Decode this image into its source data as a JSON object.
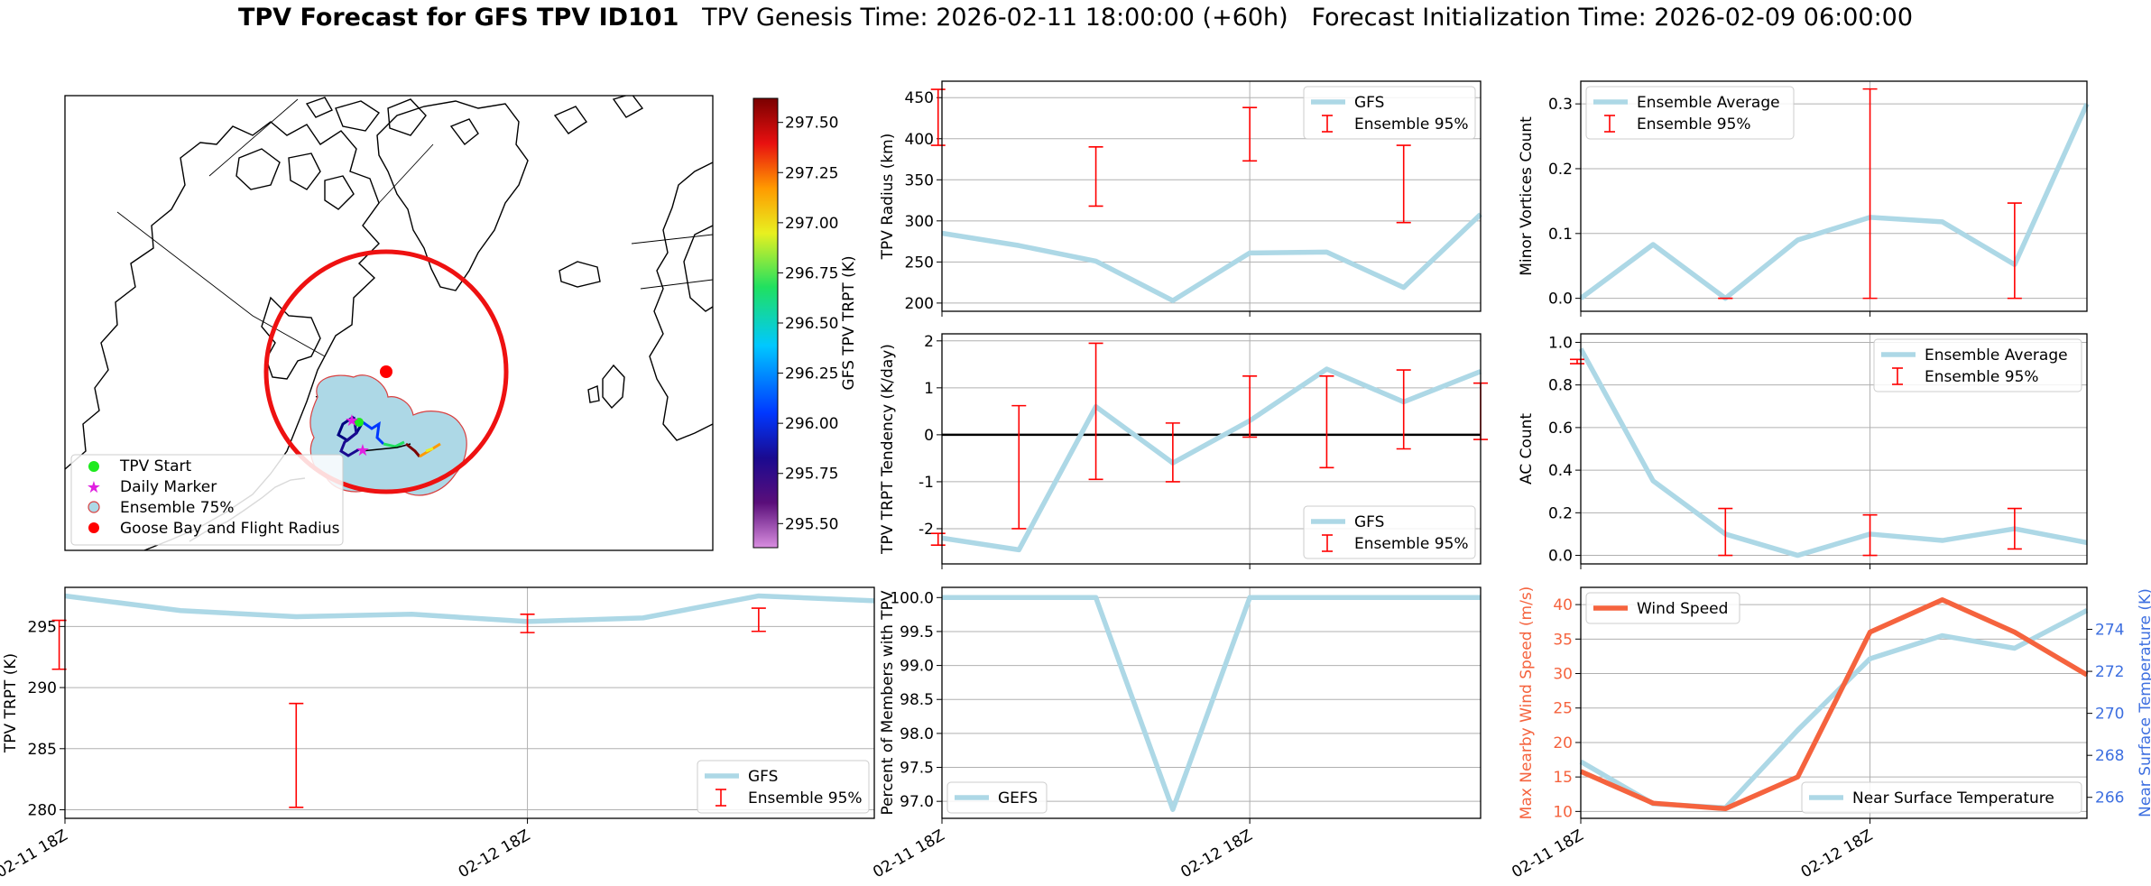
{
  "title": {
    "bold": "TPV Forecast for GFS TPV ID101",
    "genesis": "TPV Genesis Time: 2026-02-11 18:00:00 (+60h)",
    "init": "Forecast Initialization Time: 2026-02-09 06:00:00"
  },
  "colors": {
    "gfs": "#add8e6",
    "errbar": "#ff0000",
    "wind": "#f5633e",
    "temp_axis": "#3d6fe0",
    "zero_line": "#000000"
  },
  "map": {
    "legend": [
      "TPV Start",
      "Daily Marker",
      "Ensemble 75%",
      "Goose Bay and Flight Radius"
    ],
    "colorbar": {
      "label": "GFS TPV TRPT (K)",
      "ticks": [
        "297.50",
        "297.25",
        "297.00",
        "296.75",
        "296.50",
        "296.25",
        "296.00",
        "295.75",
        "295.50"
      ],
      "range": [
        295.38,
        297.62
      ]
    }
  },
  "x_ticks": [
    "02-11 18Z",
    "02-12 18Z"
  ],
  "chart_data": [
    {
      "id": "radius",
      "type": "line",
      "ylabel": "TPV Radius (km)",
      "ylim": [
        190,
        470
      ],
      "yticks": [
        200,
        250,
        300,
        350,
        400,
        450
      ],
      "xlim": [
        0,
        7
      ],
      "x": [
        0,
        1,
        2,
        3,
        4,
        5,
        6,
        7
      ],
      "values": [
        285,
        270,
        251,
        203,
        261,
        262,
        219,
        308
      ],
      "errbars": [
        [
          -0.05,
          392,
          460
        ],
        [
          2,
          318,
          390
        ],
        [
          4,
          373,
          438
        ],
        [
          6,
          298,
          392
        ]
      ],
      "legend": [
        "GFS",
        "Ensemble 95%"
      ],
      "legend_pos": "top-right"
    },
    {
      "id": "minor",
      "type": "line",
      "ylabel": "Minor Vortices Count",
      "ylim": [
        -0.02,
        0.335
      ],
      "yticks": [
        0.0,
        0.1,
        0.2,
        0.3
      ],
      "xlim": [
        0,
        7
      ],
      "x": [
        0,
        1,
        2,
        3,
        4,
        5,
        6,
        7
      ],
      "values": [
        0.0,
        0.083,
        0.0,
        0.09,
        0.125,
        0.118,
        0.052,
        0.3
      ],
      "errbars": [
        [
          2,
          0.0,
          0.0
        ],
        [
          4,
          0.0,
          0.323
        ],
        [
          6,
          0.0,
          0.147
        ]
      ],
      "legend": [
        "Ensemble Average",
        "Ensemble 95%"
      ],
      "legend_pos": "top-left"
    },
    {
      "id": "tendency",
      "type": "line",
      "ylabel": "TPV TRPT Tendency (K/day)",
      "ylim": [
        -2.75,
        2.15
      ],
      "yticks": [
        -2,
        -1,
        0,
        1,
        2
      ],
      "xlim": [
        0,
        7
      ],
      "x": [
        0,
        1,
        2,
        3,
        4,
        5,
        6,
        7
      ],
      "values": [
        -2.2,
        -2.45,
        0.6,
        -0.6,
        0.3,
        1.4,
        0.7,
        1.35
      ],
      "errbars": [
        [
          -0.05,
          -2.35,
          -2.1
        ],
        [
          1,
          -2.0,
          0.62
        ],
        [
          2,
          -0.95,
          1.95
        ],
        [
          3,
          -1.0,
          0.25
        ],
        [
          4,
          -0.05,
          1.25
        ],
        [
          5,
          -0.7,
          1.25
        ],
        [
          6,
          -0.3,
          1.38
        ],
        [
          7,
          -0.1,
          1.1
        ]
      ],
      "zero_line": 0,
      "legend": [
        "GFS",
        "Ensemble 95%"
      ],
      "legend_pos": "bottom-right"
    },
    {
      "id": "ac",
      "type": "line",
      "ylabel": "AC Count",
      "ylim": [
        -0.04,
        1.04
      ],
      "yticks": [
        0.0,
        0.2,
        0.4,
        0.6,
        0.8,
        1.0
      ],
      "xlim": [
        0,
        7
      ],
      "x": [
        0,
        1,
        2,
        3,
        4,
        5,
        6,
        7
      ],
      "values": [
        0.97,
        0.35,
        0.1,
        0.0,
        0.1,
        0.07,
        0.125,
        0.06
      ],
      "errbars": [
        [
          -0.05,
          0.9,
          0.92
        ],
        [
          2,
          0.0,
          0.22
        ],
        [
          4,
          0.0,
          0.19
        ],
        [
          6,
          0.03,
          0.22
        ]
      ],
      "legend": [
        "Ensemble Average",
        "Ensemble 95%"
      ],
      "legend_pos": "top-right"
    },
    {
      "id": "trpt",
      "type": "line",
      "ylabel": "TPV TRPT (K)",
      "ylim": [
        279.3,
        298.2
      ],
      "yticks": [
        280,
        285,
        290,
        295
      ],
      "xlim": [
        0,
        7
      ],
      "x": [
        0,
        1,
        2,
        3,
        4,
        5,
        6,
        7
      ],
      "values": [
        297.5,
        296.3,
        295.8,
        296.0,
        295.4,
        295.7,
        297.5,
        297.1
      ],
      "errbars": [
        [
          -0.05,
          291.5,
          295.5
        ],
        [
          2,
          280.2,
          288.7
        ],
        [
          4,
          294.5,
          296.0
        ],
        [
          6,
          294.6,
          296.5
        ]
      ],
      "xticks": [
        0,
        4
      ],
      "legend": [
        "GFS",
        "Ensemble 95%"
      ],
      "legend_pos": "bottom-right"
    },
    {
      "id": "members",
      "type": "line",
      "ylabel": "Percent of Members with TPV",
      "ylim": [
        96.75,
        100.15
      ],
      "yticks": [
        97.0,
        97.5,
        98.0,
        98.5,
        99.0,
        99.5,
        100.0
      ],
      "xlim": [
        0,
        7
      ],
      "x": [
        0,
        1,
        2,
        3,
        4,
        5,
        6,
        7
      ],
      "values": [
        100,
        100,
        100,
        96.88,
        100,
        100,
        100,
        100
      ],
      "xticks": [
        0,
        4
      ],
      "legend": [
        "GEFS"
      ],
      "legend_pos": "bottom-left"
    },
    {
      "id": "wind",
      "type": "line",
      "ylabel": "Max Nearby Wind Speed (m/s)",
      "ylabel2": "Near Surface Temperature (K)",
      "ylim": [
        9,
        42.5
      ],
      "yticks": [
        10,
        15,
        20,
        25,
        30,
        35,
        40
      ],
      "ylim2": [
        265,
        276
      ],
      "yticks2": [
        266,
        268,
        270,
        272,
        274
      ],
      "xlim": [
        0,
        7
      ],
      "x": [
        0,
        1,
        2,
        3,
        4,
        5,
        6,
        7
      ],
      "series": [
        {
          "name": "Wind Speed",
          "values": [
            15.8,
            11.2,
            10.4,
            15.0,
            36.0,
            40.7,
            36.0,
            29.8
          ]
        },
        {
          "name": "Near Surface Temperature",
          "values": [
            267.7,
            265.7,
            265.5,
            269.2,
            272.6,
            273.7,
            273.1,
            274.9
          ]
        }
      ],
      "xticks": [
        0,
        4
      ],
      "legend": [
        "Wind Speed"
      ],
      "legend2": [
        "Near Surface Temperature"
      ]
    }
  ]
}
